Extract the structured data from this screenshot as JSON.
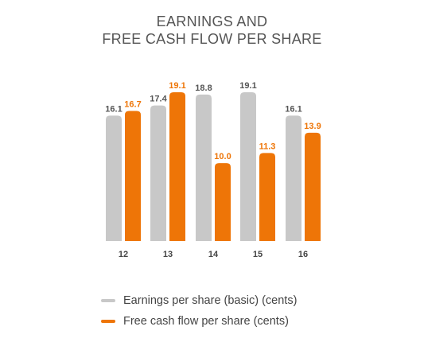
{
  "title_line1": "EARNINGS AND",
  "title_line2": "FREE CASH FLOW PER SHARE",
  "colors": {
    "earnings": "#c8c8c8",
    "fcf": "#ee7507",
    "earnings_label": "#555555",
    "fcf_label": "#ee7507",
    "axis_label": "#444444"
  },
  "legend": [
    {
      "label": "Earnings per share (basic) (cents)",
      "color": "#c8c8c8"
    },
    {
      "label": "Free cash flow per share (cents)",
      "color": "#ee7507"
    }
  ],
  "chart_data": {
    "type": "bar",
    "title": "EARNINGS AND FREE CASH FLOW PER SHARE",
    "categories": [
      "12",
      "13",
      "14",
      "15",
      "16"
    ],
    "series": [
      {
        "name": "Earnings per share (basic) (cents)",
        "values": [
          16.1,
          17.4,
          18.8,
          19.1,
          16.1
        ]
      },
      {
        "name": "Free cash flow per share (cents)",
        "values": [
          16.7,
          19.1,
          10.0,
          11.3,
          13.9
        ]
      }
    ],
    "ylim": [
      0,
      19.1
    ],
    "grid": false,
    "legend_position": "bottom"
  }
}
